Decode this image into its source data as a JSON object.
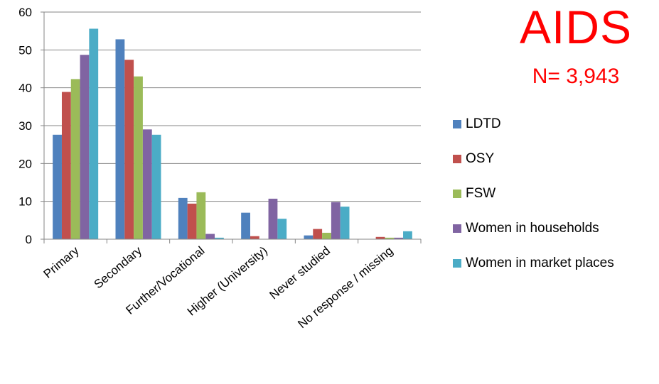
{
  "header": {
    "title": "AIDS",
    "subtitle": "N= 3,943"
  },
  "chart_data": {
    "type": "bar",
    "categories": [
      "Primary",
      "Secondary",
      "Further/Vocational",
      "Higher (University)",
      "Never studied",
      "No response / missing"
    ],
    "series": [
      {
        "name": "LDTD",
        "color": "#4f81bd",
        "values": [
          27.6,
          52.8,
          10.9,
          7.0,
          1.0,
          0.0
        ]
      },
      {
        "name": "OSY",
        "color": "#c0504d",
        "values": [
          38.9,
          47.4,
          9.4,
          0.8,
          2.7,
          0.6
        ]
      },
      {
        "name": "FSW",
        "color": "#9bbb59",
        "values": [
          42.3,
          43.0,
          12.4,
          0.0,
          1.7,
          0.4
        ]
      },
      {
        "name": "Women in households",
        "color": "#8064a2",
        "values": [
          48.7,
          29.0,
          1.4,
          10.7,
          9.8,
          0.4
        ]
      },
      {
        "name": "Women in market places",
        "color": "#4bacc6",
        "values": [
          55.6,
          27.6,
          0.4,
          5.4,
          8.6,
          2.1
        ]
      }
    ],
    "title": "AIDS",
    "subtitle": "N= 3,943",
    "ylim": [
      0,
      60
    ],
    "yticks": [
      0,
      10,
      20,
      30,
      40,
      50,
      60
    ],
    "grid": true,
    "legend": "right"
  }
}
